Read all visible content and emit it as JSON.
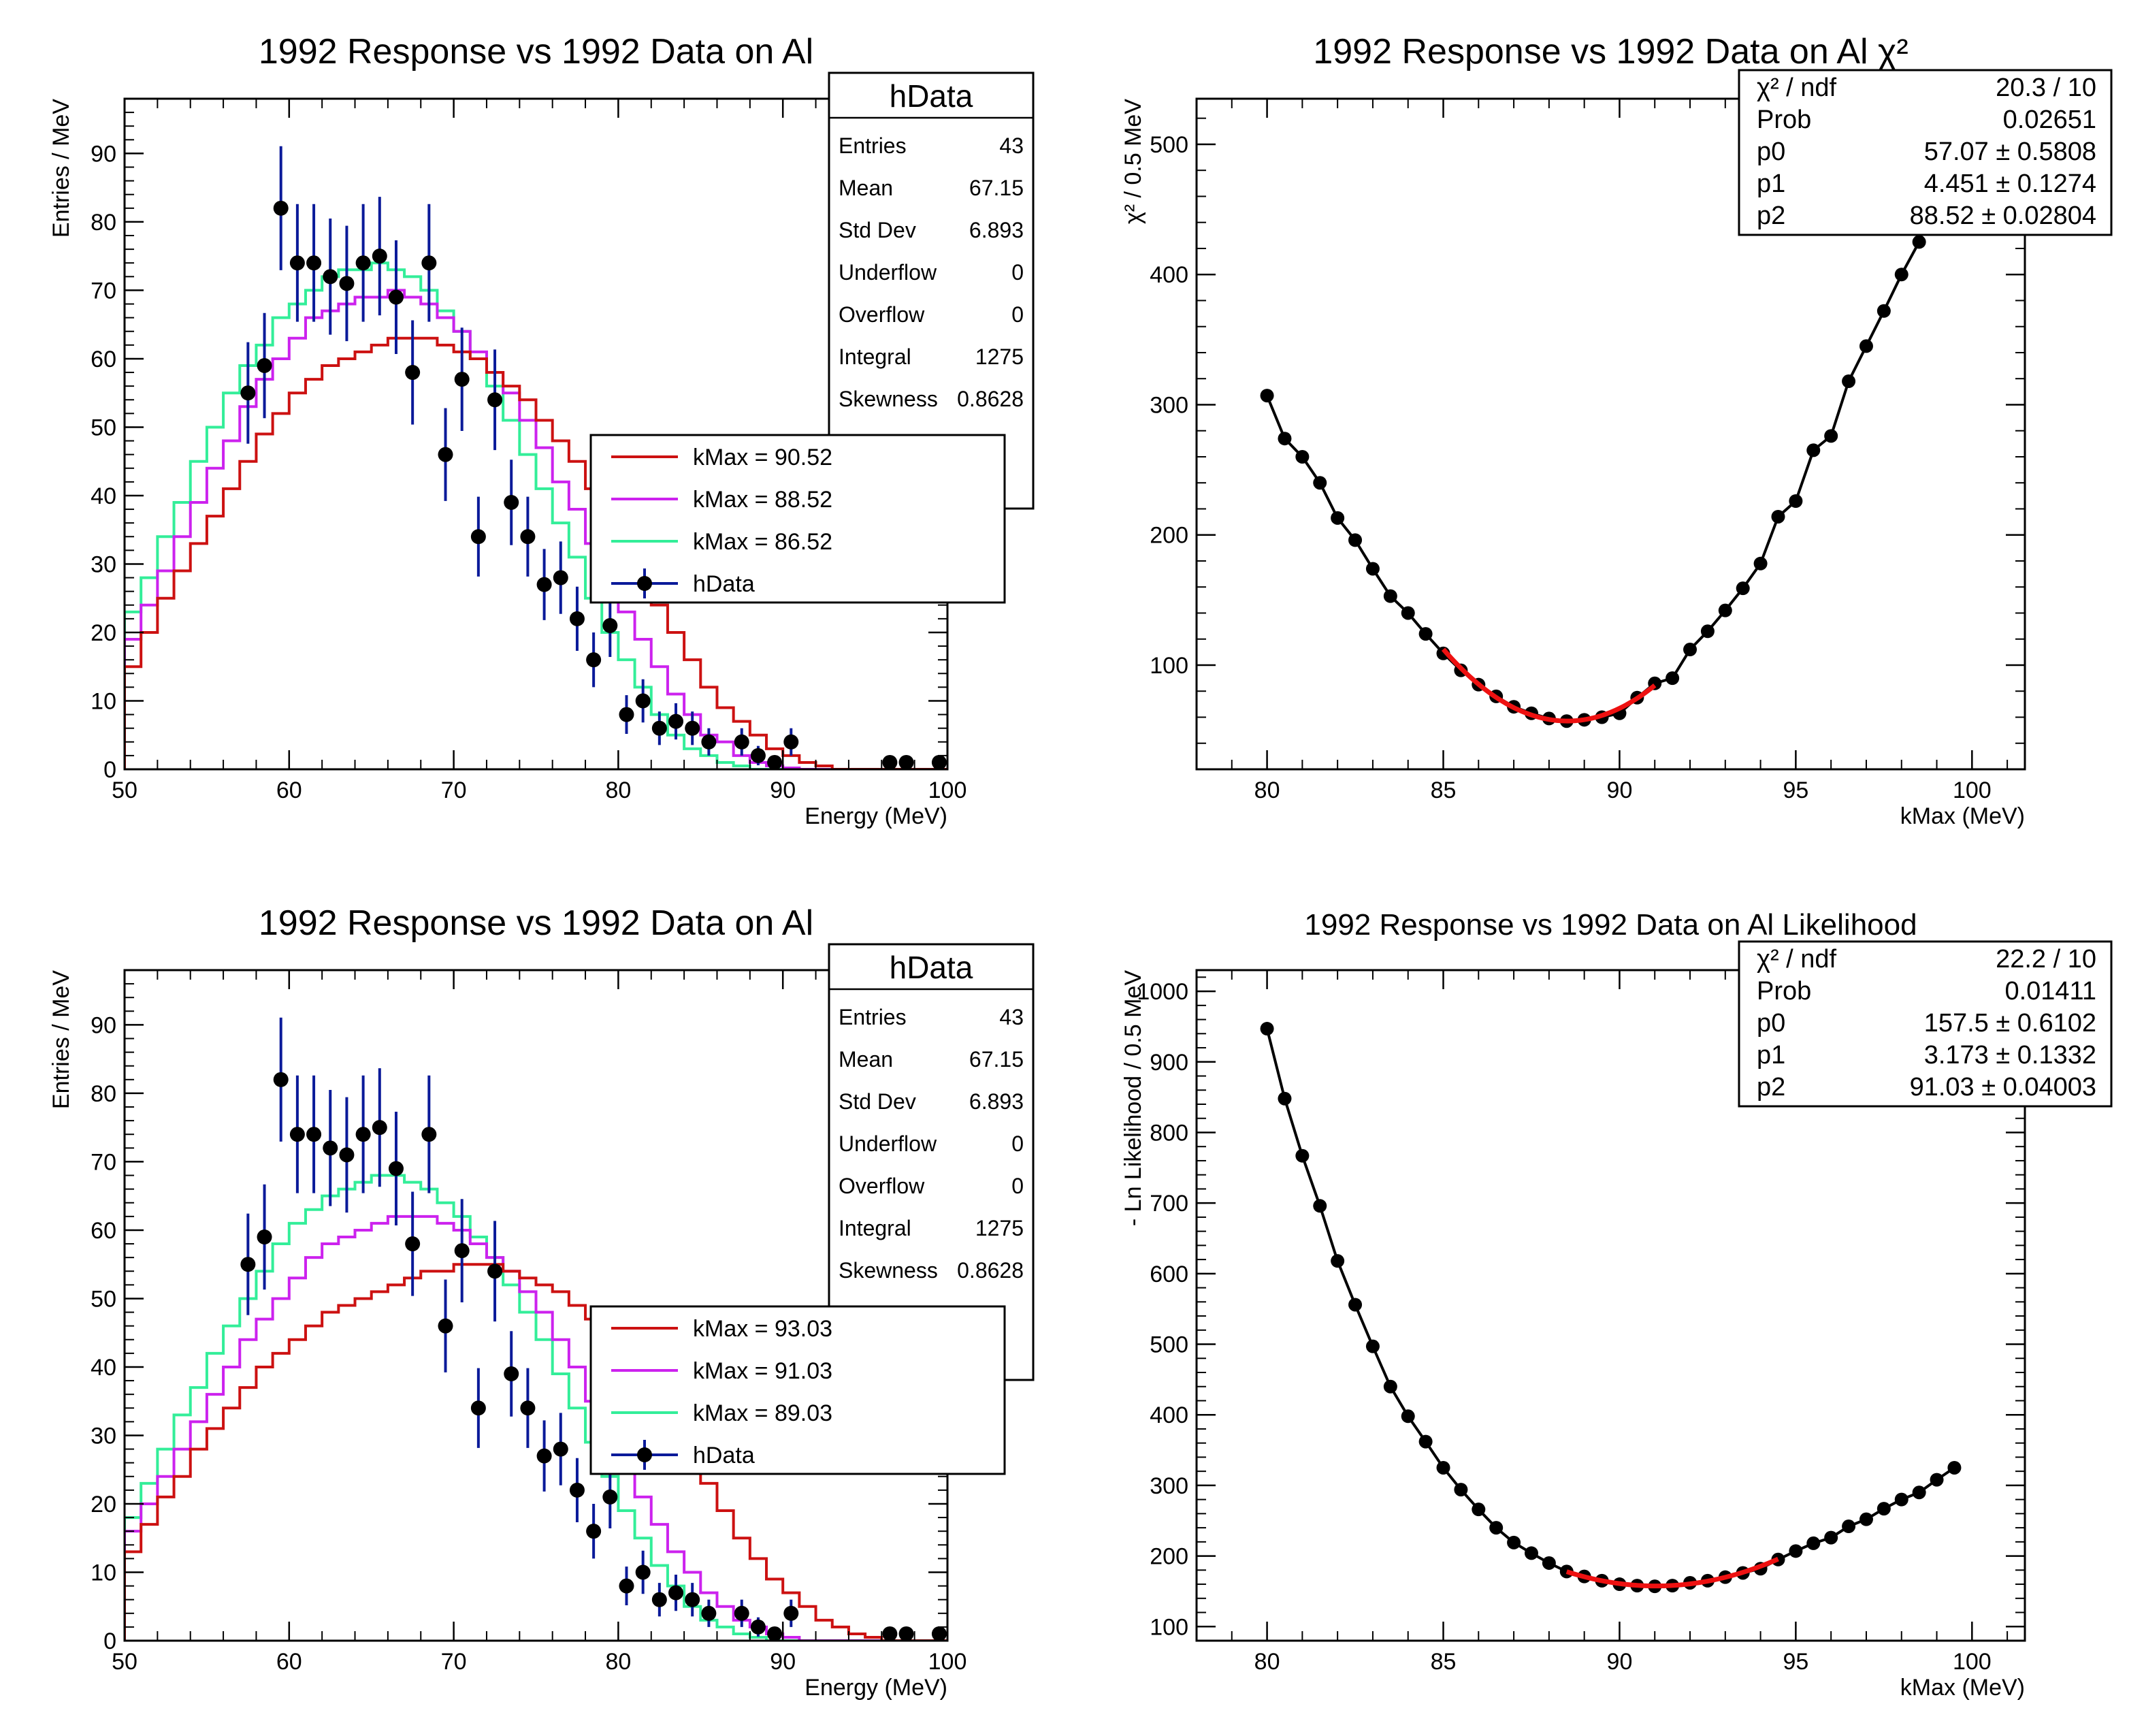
{
  "colors": {
    "red": "#cc1111",
    "magenta": "#cc22ee",
    "green": "#33ee99",
    "data_marker": "#000000",
    "error_bar": "#0a1a99",
    "fit_curve": "#ee1111"
  },
  "chart_data": [
    {
      "type": "line",
      "subtype": "histogram-step",
      "title": "1992 Response vs 1992 Data on Al",
      "xlabel": "Energy (MeV)",
      "ylabel": "Entries / MeV",
      "xlim": [
        50,
        100
      ],
      "ylim": [
        0,
        98
      ],
      "xticks": [
        50,
        60,
        70,
        80,
        90,
        100
      ],
      "yticks": [
        0,
        10,
        20,
        30,
        40,
        50,
        60,
        70,
        80,
        90
      ],
      "legend": {
        "position": "center-right",
        "entries": [
          "kMax = 90.52",
          "kMax = 88.52",
          "kMax = 86.52",
          "hData"
        ]
      },
      "stats": {
        "name": "hData",
        "rows": [
          [
            "Entries",
            "43"
          ],
          [
            "Mean",
            "67.15"
          ],
          [
            "Std Dev",
            "6.893"
          ],
          [
            "Underflow",
            "0"
          ],
          [
            "Overflow",
            "0"
          ],
          [
            "Integral",
            "1275"
          ],
          [
            "Skewness",
            "0.8628"
          ]
        ]
      },
      "hist_series": [
        {
          "name": "kMax = 90.52",
          "color": "#cc1111",
          "x0": 50,
          "bin": 1,
          "values": [
            15,
            20,
            25,
            29,
            33,
            37,
            41,
            45,
            49,
            52,
            55,
            57,
            59,
            60,
            61,
            62,
            63,
            63,
            63,
            62,
            61,
            60,
            58,
            56,
            54,
            51,
            48,
            45,
            41,
            37,
            33,
            28,
            24,
            20,
            16,
            12,
            9,
            7,
            5,
            3,
            2,
            1,
            0.5,
            0,
            0,
            0,
            0,
            0,
            0,
            0
          ]
        },
        {
          "name": "kMax = 88.52",
          "color": "#cc22ee",
          "x0": 50,
          "bin": 1,
          "values": [
            19,
            24,
            29,
            34,
            39,
            44,
            48,
            53,
            57,
            60,
            63,
            66,
            67,
            68,
            69,
            69,
            70,
            69,
            68,
            66,
            64,
            61,
            58,
            55,
            51,
            47,
            42,
            38,
            33,
            28,
            23,
            19,
            15,
            11,
            8,
            5,
            4,
            2,
            1,
            0.5,
            0.2,
            0,
            0,
            0,
            0,
            0,
            0,
            0,
            0,
            0
          ]
        },
        {
          "name": "kMax = 86.52",
          "color": "#33ee99",
          "x0": 50,
          "bin": 1,
          "values": [
            23,
            28,
            34,
            39,
            45,
            50,
            55,
            59,
            62,
            66,
            68,
            70,
            72,
            73,
            73,
            74,
            73,
            72,
            70,
            67,
            64,
            60,
            56,
            51,
            46,
            41,
            36,
            31,
            25,
            20,
            16,
            12,
            8,
            5,
            3,
            2,
            1,
            0.5,
            0,
            0,
            0,
            0,
            0,
            0,
            0,
            0,
            0,
            0,
            0,
            0
          ]
        }
      ],
      "data_points": {
        "name": "hData",
        "x": [
          57.5,
          58.5,
          59.5,
          60.5,
          61.5,
          62.5,
          63.5,
          64.5,
          65.5,
          66.5,
          67.5,
          68.5,
          69.5,
          70.5,
          71.5,
          72.5,
          73.5,
          74.5,
          75.5,
          76.5,
          77.5,
          78.5,
          79.5,
          80.5,
          81.5,
          82.5,
          83.5,
          84.5,
          85.5,
          87.5,
          88.5,
          89.5,
          90.5,
          96.5,
          97.5,
          99.5
        ],
        "y": [
          55,
          59,
          82,
          74,
          74,
          72,
          71,
          74,
          75,
          69,
          58,
          74,
          46,
          57,
          34,
          54,
          39,
          34,
          27,
          28,
          22,
          16,
          21,
          8,
          10,
          6,
          7,
          6,
          4,
          4,
          2,
          1,
          4,
          1,
          1,
          1
        ]
      }
    },
    {
      "type": "scatter",
      "subtype": "graph-with-fit",
      "title": "1992 Response vs 1992 Data on Al χ²",
      "xlabel": "kMax (MeV)",
      "ylabel": "χ² / 0.5 MeV",
      "xlim": [
        78,
        101.5
      ],
      "ylim": [
        20,
        535
      ],
      "xticks": [
        80,
        85,
        90,
        95,
        100
      ],
      "yticks": [
        100,
        200,
        300,
        400,
        500
      ],
      "fit_stats": [
        [
          "χ² / ndf",
          "20.3 / 10"
        ],
        [
          "Prob",
          "0.02651"
        ],
        [
          "p0",
          "57.07 ± 0.5808"
        ],
        [
          "p1",
          "4.451 ± 0.1274"
        ],
        [
          "p2",
          "88.52 ± 0.02804"
        ]
      ],
      "fit": {
        "p0": 57.07,
        "p1": 4.451,
        "p2": 88.52,
        "range": [
          85,
          91
        ]
      },
      "points": {
        "x": [
          80,
          80.5,
          81,
          81.5,
          82,
          82.5,
          83,
          83.5,
          84,
          84.5,
          85,
          85.5,
          86,
          86.5,
          87,
          87.5,
          88,
          88.5,
          89,
          89.5,
          90,
          90.5,
          91,
          91.5,
          92,
          92.5,
          93,
          93.5,
          94,
          94.5,
          95,
          95.5,
          96,
          96.5,
          97,
          97.5,
          98,
          98.5
        ],
        "y": [
          307,
          274,
          260,
          240,
          213,
          196,
          174,
          153,
          140,
          124,
          109,
          96,
          85,
          76,
          68,
          63,
          59,
          57,
          58,
          60,
          63,
          75,
          86,
          90,
          112,
          126,
          142,
          159,
          178,
          214,
          226,
          265,
          276,
          318,
          345,
          372,
          400,
          425
        ]
      }
    },
    {
      "type": "line",
      "subtype": "histogram-step",
      "title": "1992 Response vs 1992 Data on Al",
      "xlabel": "Energy (MeV)",
      "ylabel": "Entries / MeV",
      "xlim": [
        50,
        100
      ],
      "ylim": [
        0,
        98
      ],
      "xticks": [
        50,
        60,
        70,
        80,
        90,
        100
      ],
      "yticks": [
        0,
        10,
        20,
        30,
        40,
        50,
        60,
        70,
        80,
        90
      ],
      "legend": {
        "position": "center-right",
        "entries": [
          "kMax = 93.03",
          "kMax = 91.03",
          "kMax = 89.03",
          "hData"
        ]
      },
      "stats": {
        "name": "hData",
        "rows": [
          [
            "Entries",
            "43"
          ],
          [
            "Mean",
            "67.15"
          ],
          [
            "Std Dev",
            "6.893"
          ],
          [
            "Underflow",
            "0"
          ],
          [
            "Overflow",
            "0"
          ],
          [
            "Integral",
            "1275"
          ],
          [
            "Skewness",
            "0.8628"
          ]
        ]
      },
      "hist_series": [
        {
          "name": "kMax = 93.03",
          "color": "#cc1111",
          "x0": 50,
          "bin": 1,
          "values": [
            13,
            17,
            21,
            24,
            28,
            31,
            34,
            37,
            40,
            42,
            44,
            46,
            48,
            49,
            50,
            51,
            52,
            53,
            54,
            54,
            55,
            55,
            55,
            54,
            53,
            52,
            51,
            49,
            47,
            45,
            42,
            39,
            35,
            31,
            27,
            23,
            19,
            15,
            12,
            9,
            7,
            5,
            3,
            2,
            1,
            0.5,
            0,
            0,
            0,
            0
          ]
        },
        {
          "name": "kMax = 91.03",
          "color": "#cc22ee",
          "x0": 50,
          "bin": 1,
          "values": [
            16,
            20,
            24,
            28,
            32,
            36,
            40,
            44,
            47,
            50,
            53,
            56,
            58,
            59,
            60,
            61,
            62,
            62,
            62,
            61,
            60,
            58,
            56,
            54,
            51,
            48,
            44,
            40,
            35,
            30,
            25,
            21,
            17,
            13,
            10,
            7,
            5,
            3,
            2,
            1,
            0.5,
            0,
            0,
            0,
            0,
            0,
            0,
            0,
            0,
            0
          ]
        },
        {
          "name": "kMax = 89.03",
          "color": "#33ee99",
          "x0": 50,
          "bin": 1,
          "values": [
            18,
            23,
            28,
            33,
            37,
            42,
            46,
            50,
            54,
            58,
            61,
            63,
            65,
            66,
            67,
            68,
            68,
            67,
            66,
            64,
            62,
            59,
            56,
            52,
            48,
            44,
            39,
            34,
            29,
            24,
            19,
            15,
            11,
            8,
            5,
            3,
            2,
            1,
            0.5,
            0,
            0,
            0,
            0,
            0,
            0,
            0,
            0,
            0,
            0,
            0
          ]
        }
      ],
      "data_points": {
        "name": "hData",
        "x": [
          57.5,
          58.5,
          59.5,
          60.5,
          61.5,
          62.5,
          63.5,
          64.5,
          65.5,
          66.5,
          67.5,
          68.5,
          69.5,
          70.5,
          71.5,
          72.5,
          73.5,
          74.5,
          75.5,
          76.5,
          77.5,
          78.5,
          79.5,
          80.5,
          81.5,
          82.5,
          83.5,
          84.5,
          85.5,
          87.5,
          88.5,
          89.5,
          90.5,
          96.5,
          97.5,
          99.5
        ],
        "y": [
          55,
          59,
          82,
          74,
          74,
          72,
          71,
          74,
          75,
          69,
          58,
          74,
          46,
          57,
          34,
          54,
          39,
          34,
          27,
          28,
          22,
          16,
          21,
          8,
          10,
          6,
          7,
          6,
          4,
          4,
          2,
          1,
          4,
          1,
          1,
          1
        ]
      }
    },
    {
      "type": "scatter",
      "subtype": "graph-with-fit",
      "title": "1992 Response vs 1992 Data on Al Likelihood",
      "xlabel": "kMax (MeV)",
      "ylabel": "- Ln Likelihood / 0.5 MeV",
      "xlim": [
        78,
        101.5
      ],
      "ylim": [
        80,
        1030
      ],
      "xticks": [
        80,
        85,
        90,
        95,
        100
      ],
      "yticks": [
        100,
        200,
        300,
        400,
        500,
        600,
        700,
        800,
        900,
        1000
      ],
      "fit_stats": [
        [
          "χ² / ndf",
          "22.2 / 10"
        ],
        [
          "Prob",
          "0.01411"
        ],
        [
          "p0",
          "157.5 ± 0.6102"
        ],
        [
          "p1",
          "3.173 ± 0.1332"
        ],
        [
          "p2",
          "91.03 ± 0.04003"
        ]
      ],
      "fit": {
        "p0": 157.5,
        "p1": 3.173,
        "p2": 91.03,
        "range": [
          88.5,
          94.5
        ]
      },
      "points": {
        "x": [
          80,
          80.5,
          81,
          81.5,
          82,
          82.5,
          83,
          83.5,
          84,
          84.5,
          85,
          85.5,
          86,
          86.5,
          87,
          87.5,
          88,
          88.5,
          89,
          89.5,
          90,
          90.5,
          91,
          91.5,
          92,
          92.5,
          93,
          93.5,
          94,
          94.5,
          95,
          95.5,
          96,
          96.5,
          97,
          97.5,
          98,
          98.5,
          99,
          99.5
        ],
        "y": [
          947,
          848,
          767,
          696,
          618,
          556,
          497,
          440,
          398,
          362,
          325,
          294,
          266,
          240,
          219,
          204,
          190,
          178,
          171,
          165,
          160,
          158,
          157,
          158,
          162,
          165,
          170,
          176,
          182,
          195,
          207,
          218,
          226,
          242,
          252,
          267,
          280,
          290,
          308,
          325
        ]
      }
    }
  ]
}
